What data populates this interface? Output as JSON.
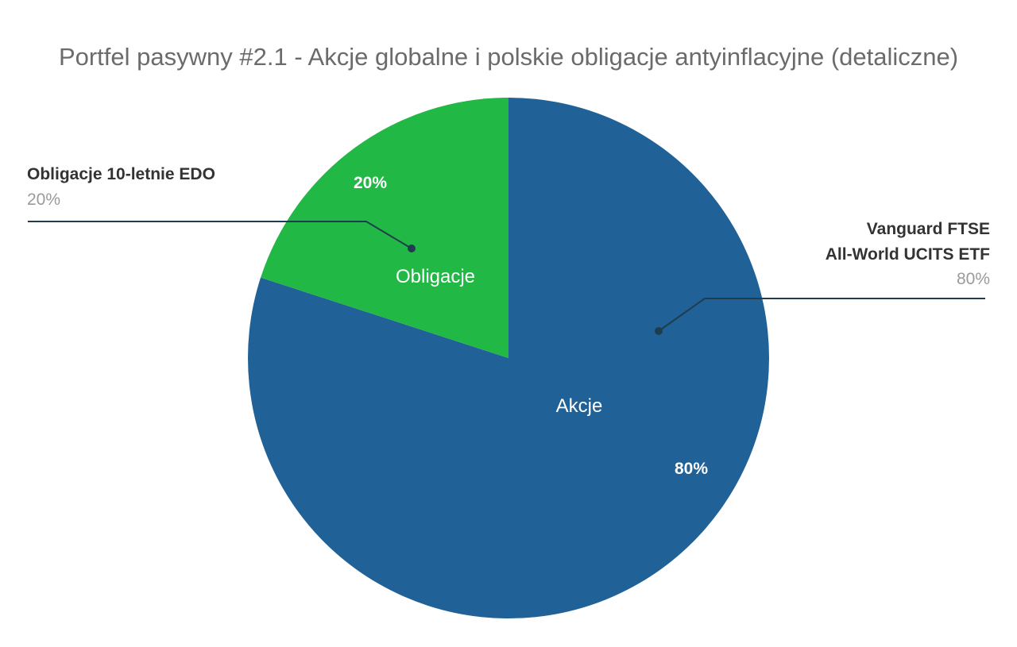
{
  "chart_data": {
    "type": "pie",
    "title": "Portfel pasywny #2.1 - Akcje globalne i polskie obligacje antyinflacyjne (detaliczne)",
    "slices": [
      {
        "label": "Akcje",
        "value": 80,
        "percent_label": "80%",
        "legend_name_lines": [
          "Vanguard FTSE",
          "All-World UCITS ETF"
        ],
        "legend_percent": "80%",
        "color": "#206297"
      },
      {
        "label": "Obligacje",
        "value": 20,
        "percent_label": "20%",
        "legend_name_lines": [
          "Obligacje 10-letnie EDO"
        ],
        "legend_percent": "20%",
        "color": "#22b845"
      }
    ],
    "legend": "callouts",
    "start_angle": "12 o'clock, clockwise"
  },
  "colors": {
    "title": "#6b6b6b",
    "legend_name": "#333333",
    "legend_percent": "#9a9a9a",
    "leader_line": "#1f3d4f"
  }
}
